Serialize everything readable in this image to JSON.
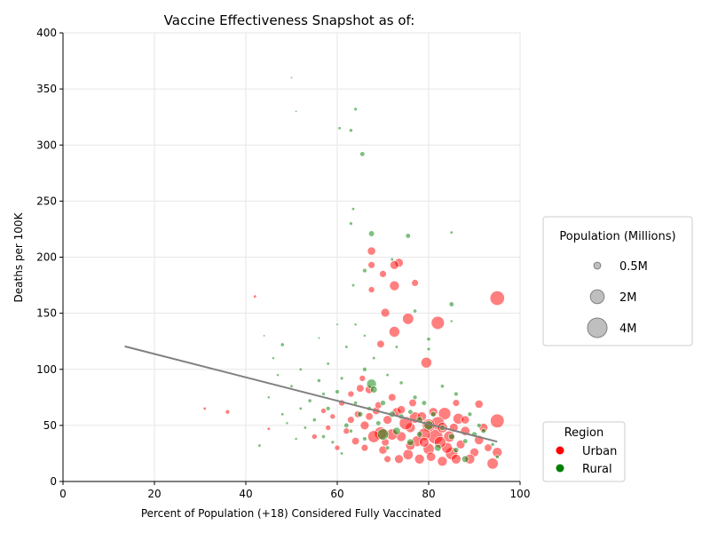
{
  "chart_data": {
    "type": "scatter",
    "title": "Vaccine Effectiveness Snapshot as of:",
    "xlabel": "Percent of Population (+18) Considered Fully Vaccinated",
    "ylabel": "Deaths per 100K",
    "xlim": [
      0,
      100
    ],
    "ylim": [
      0,
      400
    ],
    "xticks": [
      "0",
      "20",
      "40",
      "60",
      "80",
      "100"
    ],
    "yticks": [
      "0",
      "50",
      "100",
      "150",
      "200",
      "250",
      "300",
      "350",
      "400"
    ],
    "grid": true,
    "trendline": {
      "x": [
        13.5,
        95.0
      ],
      "y": [
        120.5,
        35.5
      ],
      "color": "#808080"
    },
    "size_legend": {
      "title": "Population (Millions)",
      "entries": [
        {
          "label": "0.5M",
          "population_m": 0.5
        },
        {
          "label": "2M",
          "population_m": 2
        },
        {
          "label": "4M",
          "population_m": 4
        }
      ]
    },
    "color_legend": {
      "title": "Region",
      "entries": [
        {
          "label": "Urban",
          "color": "#ff0000"
        },
        {
          "label": "Rural",
          "color": "#008000"
        }
      ]
    },
    "series": [
      {
        "name": "Urban",
        "color": "#ff0000",
        "points": [
          [
            95.0,
            163.5,
            2.2
          ],
          [
            82.0,
            141.5,
            1.8
          ],
          [
            75.5,
            145.0,
            1.3
          ],
          [
            72.5,
            133.5,
            1.2
          ],
          [
            79.5,
            106.0,
            1.2
          ],
          [
            70.5,
            150.5,
            0.8
          ],
          [
            72.5,
            174.5,
            1.0
          ],
          [
            73.5,
            195.0,
            0.8
          ],
          [
            72.5,
            193.0,
            0.8
          ],
          [
            67.5,
            205.5,
            0.7
          ],
          [
            77.0,
            177.0,
            0.5
          ],
          [
            70.0,
            185.0,
            0.5
          ],
          [
            67.5,
            193.0,
            0.5
          ],
          [
            69.5,
            122.5,
            0.6
          ],
          [
            67.5,
            171.0,
            0.4
          ],
          [
            91.0,
            69.0,
            0.7
          ],
          [
            95.0,
            54.0,
            2.0
          ],
          [
            95.0,
            26.0,
            1.0
          ],
          [
            94.0,
            16.0,
            1.3
          ],
          [
            91.0,
            37.0,
            0.9
          ],
          [
            90.0,
            26.0,
            0.8
          ],
          [
            89.0,
            20.0,
            1.0
          ],
          [
            87.0,
            33.0,
            0.8
          ],
          [
            86.5,
            56.0,
            1.2
          ],
          [
            85.0,
            25.0,
            1.6
          ],
          [
            84.5,
            40.0,
            1.3
          ],
          [
            83.5,
            60.5,
            1.6
          ],
          [
            83.0,
            18.0,
            1.0
          ],
          [
            82.0,
            52.0,
            1.8
          ],
          [
            81.5,
            40.0,
            2.3
          ],
          [
            80.0,
            29.0,
            1.3
          ],
          [
            80.0,
            50.0,
            1.7
          ],
          [
            79.0,
            42.0,
            1.6
          ],
          [
            78.0,
            20.0,
            1.0
          ],
          [
            77.5,
            36.0,
            1.2
          ],
          [
            77.0,
            57.0,
            1.3
          ],
          [
            76.0,
            48.0,
            1.0
          ],
          [
            75.5,
            24.0,
            1.1
          ],
          [
            75.0,
            52.0,
            1.8
          ],
          [
            74.0,
            40.0,
            1.0
          ],
          [
            73.5,
            20.0,
            0.8
          ],
          [
            73.0,
            62.0,
            0.8
          ],
          [
            72.0,
            42.0,
            1.3
          ],
          [
            71.0,
            55.0,
            0.8
          ],
          [
            70.0,
            28.0,
            0.7
          ],
          [
            69.5,
            43.0,
            1.7
          ],
          [
            68.5,
            63.0,
            0.6
          ],
          [
            68.0,
            40.0,
            1.5
          ],
          [
            67.0,
            82.0,
            0.7
          ],
          [
            66.0,
            50.0,
            0.8
          ],
          [
            65.0,
            83.0,
            0.6
          ],
          [
            64.5,
            60.0,
            0.5
          ],
          [
            64.0,
            36.0,
            0.6
          ],
          [
            63.0,
            55.0,
            0.5
          ],
          [
            62.0,
            45.0,
            0.4
          ],
          [
            61.0,
            70.0,
            0.4
          ],
          [
            60.0,
            30.0,
            0.3
          ],
          [
            58.0,
            48.0,
            0.3
          ],
          [
            57.0,
            63.0,
            0.3
          ],
          [
            55.0,
            40.0,
            0.3
          ],
          [
            86.0,
            20.0,
            1.0
          ],
          [
            88.0,
            45.0,
            0.9
          ],
          [
            84.0,
            30.0,
            1.2
          ],
          [
            81.0,
            62.0,
            0.8
          ],
          [
            79.0,
            35.0,
            1.0
          ],
          [
            76.0,
            32.0,
            0.9
          ],
          [
            74.0,
            64.0,
            0.7
          ],
          [
            72.0,
            75.0,
            0.6
          ],
          [
            70.5,
            35.0,
            0.6
          ],
          [
            67.0,
            58.0,
            0.6
          ],
          [
            66.0,
            30.0,
            0.5
          ],
          [
            92.0,
            48.0,
            0.8
          ],
          [
            93.0,
            30.0,
            0.6
          ],
          [
            86.0,
            70.0,
            0.5
          ],
          [
            83.0,
            48.0,
            1.1
          ],
          [
            80.5,
            22.0,
            0.9
          ],
          [
            78.5,
            58.0,
            0.9
          ],
          [
            76.5,
            70.0,
            0.6
          ],
          [
            71.0,
            20.0,
            0.5
          ],
          [
            69.0,
            68.0,
            0.5
          ],
          [
            65.5,
            92.0,
            0.4
          ],
          [
            63.0,
            78.0,
            0.4
          ],
          [
            59.0,
            58.0,
            0.3
          ],
          [
            42.0,
            165.0,
            0.1
          ],
          [
            36.0,
            62.0,
            0.2
          ],
          [
            45.0,
            47.0,
            0.1
          ],
          [
            31.0,
            65.0,
            0.1
          ],
          [
            88.0,
            55.0,
            0.7
          ],
          [
            85.5,
            48.0,
            0.8
          ],
          [
            82.5,
            35.0,
            1.4
          ]
        ]
      },
      {
        "name": "Rural",
        "color": "#008000",
        "points": [
          [
            50.0,
            360.0,
            0.05
          ],
          [
            51.0,
            330.0,
            0.05
          ],
          [
            64.0,
            332.0,
            0.12
          ],
          [
            60.5,
            315.0,
            0.1
          ],
          [
            63.0,
            313.0,
            0.14
          ],
          [
            65.5,
            292.0,
            0.25
          ],
          [
            67.5,
            221.0,
            0.35
          ],
          [
            63.5,
            243.0,
            0.1
          ],
          [
            63.0,
            230.0,
            0.12
          ],
          [
            66.0,
            188.0,
            0.2
          ],
          [
            72.0,
            198.0,
            0.1
          ],
          [
            75.5,
            219.0,
            0.25
          ],
          [
            85.0,
            222.0,
            0.1
          ],
          [
            85.0,
            158.0,
            0.25
          ],
          [
            77.0,
            152.0,
            0.15
          ],
          [
            80.0,
            127.0,
            0.15
          ],
          [
            80.0,
            118.0,
            0.12
          ],
          [
            85.0,
            143.0,
            0.08
          ],
          [
            63.5,
            175.0,
            0.1
          ],
          [
            64.0,
            140.0,
            0.08
          ],
          [
            67.5,
            87.0,
            1.0
          ],
          [
            70.0,
            42.0,
            1.3
          ],
          [
            68.0,
            82.0,
            0.5
          ],
          [
            66.0,
            100.0,
            0.2
          ],
          [
            48.0,
            122.0,
            0.15
          ],
          [
            43.0,
            32.0,
            0.1
          ],
          [
            80.0,
            50.0,
            0.9
          ],
          [
            73.0,
            45.0,
            0.6
          ],
          [
            76.0,
            35.0,
            0.5
          ],
          [
            78.0,
            55.0,
            0.4
          ],
          [
            82.0,
            30.0,
            0.5
          ],
          [
            85.0,
            40.0,
            0.4
          ],
          [
            88.0,
            20.0,
            0.5
          ],
          [
            90.0,
            42.0,
            0.3
          ],
          [
            72.0,
            60.0,
            0.4
          ],
          [
            70.0,
            70.0,
            0.3
          ],
          [
            65.0,
            60.0,
            0.3
          ],
          [
            62.0,
            50.0,
            0.25
          ],
          [
            60.0,
            80.0,
            0.2
          ],
          [
            58.0,
            65.0,
            0.2
          ],
          [
            56.0,
            90.0,
            0.15
          ],
          [
            55.0,
            55.0,
            0.15
          ],
          [
            54.0,
            72.0,
            0.15
          ],
          [
            52.0,
            100.0,
            0.1
          ],
          [
            50.0,
            85.0,
            0.1
          ],
          [
            48.0,
            60.0,
            0.1
          ],
          [
            46.0,
            110.0,
            0.08
          ],
          [
            45.0,
            75.0,
            0.08
          ],
          [
            62.0,
            120.0,
            0.1
          ],
          [
            58.0,
            105.0,
            0.1
          ],
          [
            68.0,
            110.0,
            0.1
          ],
          [
            71.0,
            95.0,
            0.1
          ],
          [
            74.0,
            88.0,
            0.15
          ],
          [
            77.0,
            75.0,
            0.2
          ],
          [
            79.0,
            70.0,
            0.25
          ],
          [
            81.0,
            60.0,
            0.3
          ],
          [
            83.0,
            48.0,
            0.3
          ],
          [
            86.0,
            28.0,
            0.3
          ],
          [
            92.0,
            45.0,
            0.25
          ],
          [
            94.0,
            33.0,
            0.15
          ],
          [
            57.0,
            40.0,
            0.15
          ],
          [
            59.0,
            35.0,
            0.12
          ],
          [
            61.0,
            25.0,
            0.1
          ],
          [
            63.0,
            45.0,
            0.15
          ],
          [
            66.0,
            38.0,
            0.2
          ],
          [
            69.0,
            52.0,
            0.25
          ],
          [
            71.0,
            30.0,
            0.2
          ],
          [
            74.0,
            58.0,
            0.3
          ],
          [
            76.0,
            62.0,
            0.25
          ],
          [
            78.0,
            42.0,
            0.35
          ],
          [
            53.0,
            48.0,
            0.1
          ],
          [
            51.0,
            38.0,
            0.08
          ],
          [
            49.0,
            52.0,
            0.08
          ],
          [
            47.0,
            95.0,
            0.08
          ],
          [
            44.0,
            130.0,
            0.05
          ],
          [
            56.0,
            128.0,
            0.06
          ],
          [
            60.0,
            140.0,
            0.06
          ],
          [
            66.0,
            130.0,
            0.08
          ],
          [
            73.0,
            120.0,
            0.1
          ],
          [
            86.0,
            78.0,
            0.2
          ],
          [
            83.0,
            85.0,
            0.15
          ],
          [
            89.0,
            60.0,
            0.2
          ],
          [
            91.0,
            50.0,
            0.2
          ],
          [
            95.0,
            22.0,
            0.15
          ],
          [
            88.0,
            36.0,
            0.25
          ],
          [
            57.0,
            78.0,
            0.12
          ],
          [
            61.0,
            92.0,
            0.12
          ],
          [
            64.0,
            70.0,
            0.15
          ],
          [
            67.0,
            65.0,
            0.2
          ],
          [
            52.0,
            65.0,
            0.1
          ]
        ]
      }
    ]
  }
}
